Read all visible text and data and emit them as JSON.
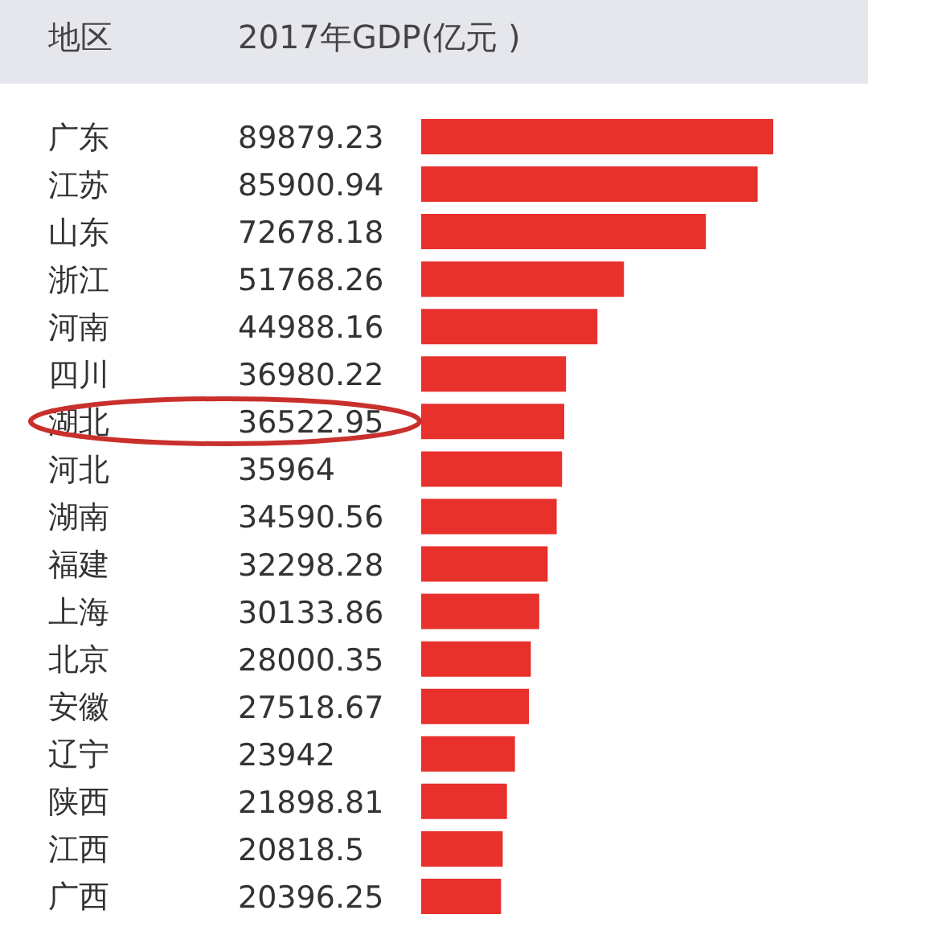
{
  "chart_data": {
    "type": "bar",
    "orientation": "horizontal",
    "ylabel": "地区",
    "xlabel": "2017年GDP(亿元 )",
    "categories": [
      "广东",
      "江苏",
      "山东",
      "浙江",
      "河南",
      "四川",
      "湖北",
      "河北",
      "湖南",
      "福建",
      "上海",
      "北京",
      "安徽",
      "辽宁",
      "陕西",
      "江西",
      "广西"
    ],
    "values": [
      89879.23,
      85900.94,
      72678.18,
      51768.26,
      44988.16,
      36980.22,
      36522.95,
      35964,
      34590.56,
      32298.28,
      30133.86,
      28000.35,
      27518.67,
      23942,
      21898.81,
      20818.5,
      20396.25
    ],
    "color": "#e8302c",
    "data_labels": true
  }
}
